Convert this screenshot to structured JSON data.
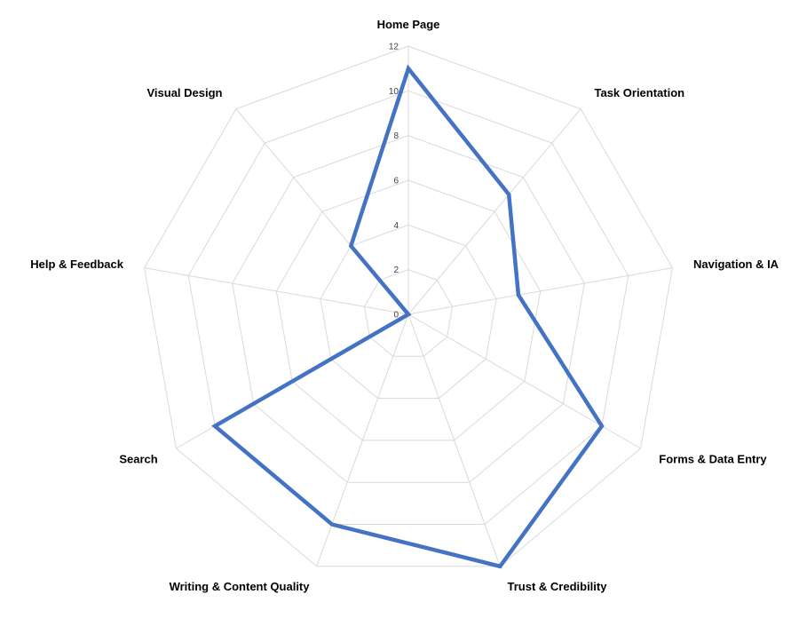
{
  "chart_data": {
    "type": "radar",
    "categories": [
      "Home Page",
      "Task Orientation",
      "Navigation & IA",
      "Forms & Data Entry",
      "Trust & Credibility",
      "Writing & Content Quality",
      "Search",
      "Help & Feedback",
      "Visual Design"
    ],
    "series": [
      {
        "values": [
          11,
          7,
          5,
          10,
          12,
          10,
          10,
          0,
          4
        ],
        "color": "#4472C4"
      }
    ],
    "rlim": [
      0,
      12
    ],
    "ticks": [
      "0",
      "2",
      "4",
      "6",
      "8",
      "10",
      "12"
    ],
    "gridlines": true,
    "legend": "none",
    "grid_color": "#D9D9D9"
  }
}
